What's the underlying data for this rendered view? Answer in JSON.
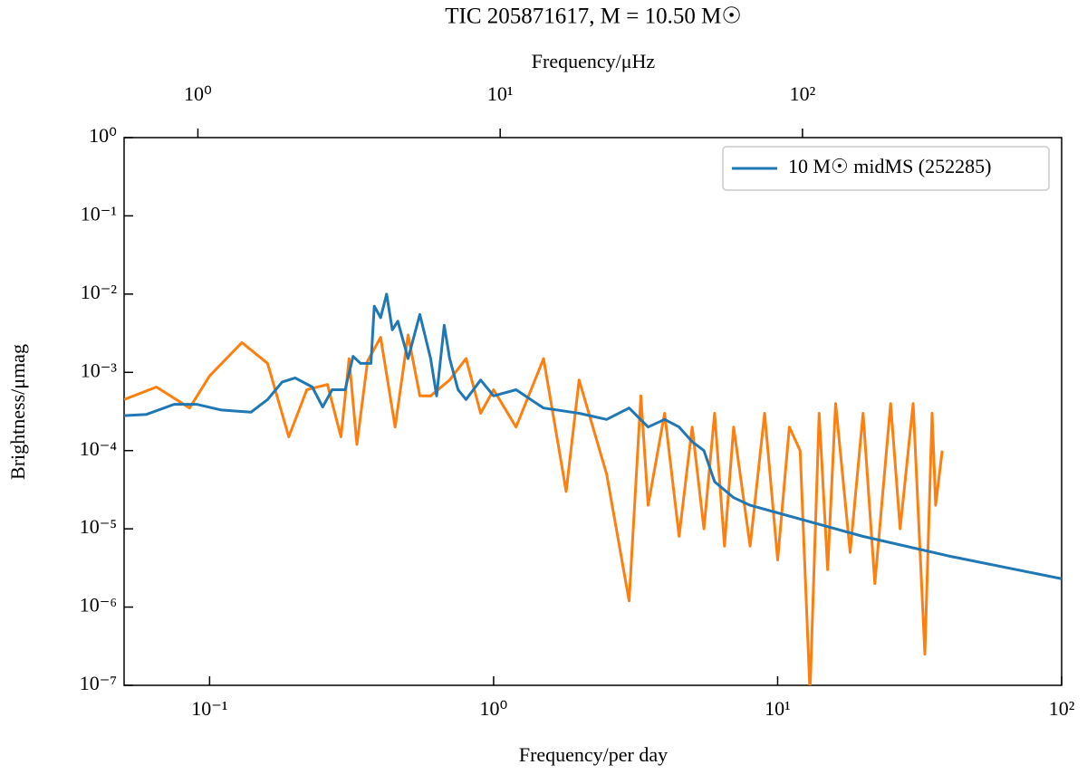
{
  "chart_data": {
    "type": "line",
    "title": "TIC 205871617, M = 10.50 M☉",
    "x_label": "Frequency/per day",
    "x2_label": "Frequency/μHz",
    "y_label": "Brightness/μmag",
    "log_x": true,
    "log_y": true,
    "legend": "upper right",
    "xlim": [
      0.05,
      100
    ],
    "xticks": [
      {
        "value": 0.1,
        "label": "10⁻¹"
      },
      {
        "value": 1,
        "label": "10⁰"
      },
      {
        "value": 10,
        "label": "10¹"
      },
      {
        "value": 100,
        "label": "10²"
      }
    ],
    "x2lim": [
      0.57,
      720
    ],
    "x2ticks": [
      {
        "value": 1,
        "label": "10⁰"
      },
      {
        "value": 10,
        "label": "10¹"
      },
      {
        "value": 100,
        "label": "10²"
      }
    ],
    "ylim": [
      1e-07,
      1
    ],
    "yticks": [
      {
        "value": 1,
        "label": "10⁰"
      },
      {
        "value": 0.1,
        "label": "10⁻¹"
      },
      {
        "value": 0.01,
        "label": "10⁻²"
      },
      {
        "value": 0.001,
        "label": "10⁻³"
      },
      {
        "value": 0.0001,
        "label": "10⁻⁴"
      },
      {
        "value": 1e-05,
        "label": "10⁻⁵"
      },
      {
        "value": 1e-06,
        "label": "10⁻⁶"
      },
      {
        "value": 1e-07,
        "label": "10⁻⁷"
      }
    ],
    "series": [
      {
        "color": "#ff7f0e",
        "x": [
          0.05,
          0.065,
          0.085,
          0.1,
          0.13,
          0.16,
          0.19,
          0.22,
          0.26,
          0.29,
          0.31,
          0.33,
          0.36,
          0.4,
          0.45,
          0.5,
          0.55,
          0.6,
          0.7,
          0.8,
          0.9,
          1.0,
          1.2,
          1.5,
          1.8,
          2.0,
          2.5,
          3.0,
          3.3,
          3.5,
          4.0,
          4.5,
          5.0,
          5.5,
          6.0,
          6.5,
          7.0,
          8.0,
          9.0,
          10,
          11,
          12,
          13,
          14,
          15,
          16,
          18,
          20,
          22,
          25,
          27,
          30,
          33,
          35,
          36,
          38
        ],
        "values": [
          0.00045,
          0.00065,
          0.00035,
          0.0009,
          0.0024,
          0.0013,
          0.00015,
          0.0006,
          0.0007,
          0.00015,
          0.0015,
          0.00012,
          0.0014,
          0.0028,
          0.0002,
          0.003,
          0.0005,
          0.0005,
          0.0008,
          0.0015,
          0.0003,
          0.0006,
          0.0002,
          0.0015,
          3e-05,
          0.0008,
          5e-05,
          1.2e-06,
          0.0005,
          2e-05,
          0.0003,
          8e-06,
          0.0002,
          1e-05,
          0.0003,
          6e-06,
          0.0002,
          6e-06,
          0.0003,
          4e-06,
          0.0002,
          0.0001,
          8e-08,
          0.0003,
          3e-06,
          0.0004,
          5e-06,
          0.0003,
          2e-06,
          0.0004,
          1e-05,
          0.0004,
          2.5e-07,
          0.0003,
          2e-05,
          0.0001
        ]
      },
      {
        "name": "10 M☉ midMS (252285)",
        "color": "#1f77b4",
        "x": [
          0.05,
          0.06,
          0.075,
          0.09,
          0.11,
          0.14,
          0.16,
          0.18,
          0.2,
          0.23,
          0.25,
          0.27,
          0.3,
          0.32,
          0.34,
          0.37,
          0.38,
          0.4,
          0.42,
          0.44,
          0.46,
          0.5,
          0.55,
          0.6,
          0.63,
          0.67,
          0.7,
          0.75,
          0.8,
          0.9,
          1.0,
          1.2,
          1.5,
          2,
          2.5,
          3,
          3.5,
          4,
          4.5,
          5,
          5.5,
          6,
          7,
          8,
          10,
          20,
          40,
          100
        ],
        "values": [
          0.00028,
          0.00029,
          0.00039,
          0.00039,
          0.00033,
          0.00031,
          0.00045,
          0.00075,
          0.00085,
          0.00065,
          0.00036,
          0.0006,
          0.0006,
          0.0016,
          0.0013,
          0.0013,
          0.007,
          0.005,
          0.01,
          0.0035,
          0.0045,
          0.0015,
          0.0055,
          0.0015,
          0.0005,
          0.004,
          0.0015,
          0.0006,
          0.00045,
          0.0008,
          0.0005,
          0.0006,
          0.00035,
          0.0003,
          0.00025,
          0.00035,
          0.0002,
          0.00025,
          0.0002,
          0.00013,
          0.0001,
          4e-05,
          2.5e-05,
          2e-05,
          1.6e-05,
          8e-06,
          4.5e-06,
          2.3e-06
        ]
      }
    ]
  }
}
